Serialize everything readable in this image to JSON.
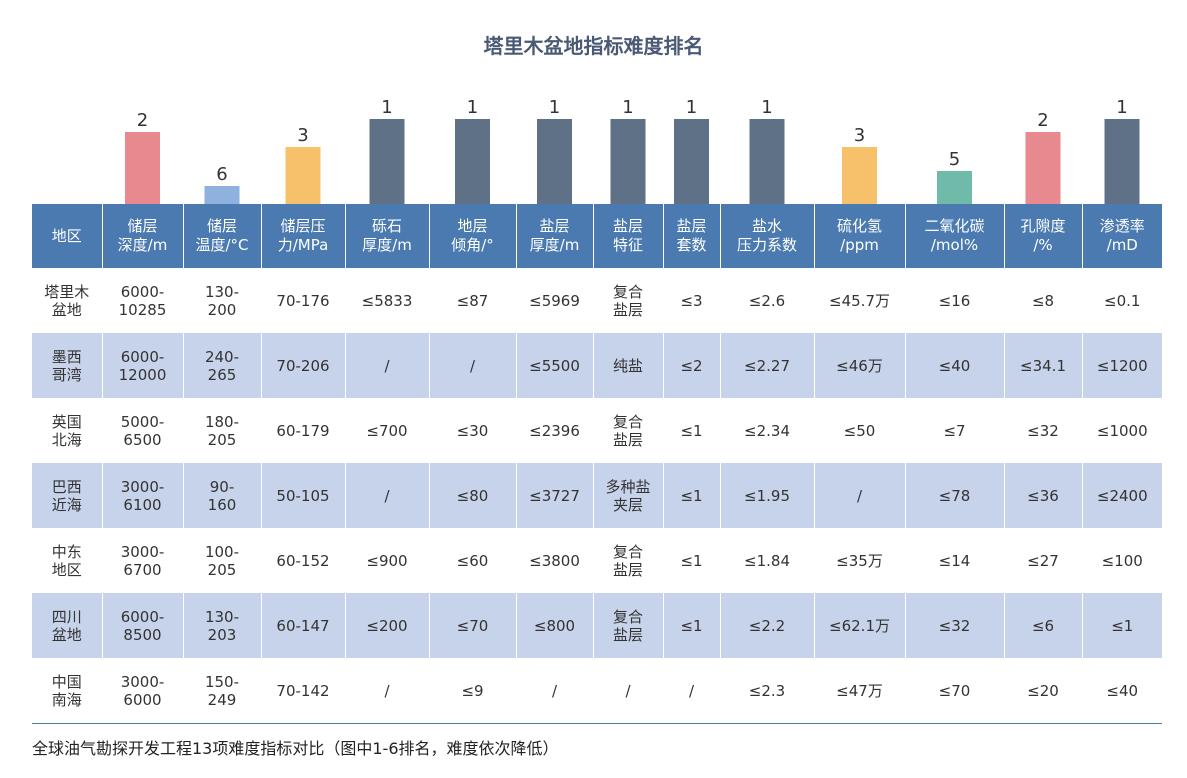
{
  "title": "塔里木盆地指标难度排名",
  "caption": "全球油气勘探开发工程13项难度指标对比（图中1-6排名，难度依次降低）",
  "colors": {
    "rank_1": "#5f7187",
    "rank_2": "#e8898f",
    "rank_3": "#f6c16a",
    "rank_5": "#6fbaa8",
    "rank_6": "#8fb1de",
    "header_bg": "#4a7ab0",
    "stripe_bg": "#c7d3ea"
  },
  "chart_data": {
    "type": "bar",
    "title": "塔里木盆地指标难度排名",
    "categories": [
      "储层深度/m",
      "储层温度/°C",
      "储层压力/MPa",
      "砾石厚度/m",
      "地层倾角/°",
      "盐层厚度/m",
      "盐层特征",
      "盐层套数",
      "盐水压力系数",
      "硫化氢/ppm",
      "二氧化碳/mol%",
      "孔隙度/%",
      "渗透率/mD"
    ],
    "values": [
      2,
      6,
      3,
      1,
      1,
      1,
      1,
      1,
      1,
      3,
      5,
      2,
      1
    ],
    "note": "rank 1-6, lower rank = higher difficulty; bar height decreases with rank"
  },
  "table": {
    "headers": [
      "地区",
      "储层\n深度/m",
      "储层\n温度/°C",
      "储层压\n力/MPa",
      "砾石\n厚度/m",
      "地层\n倾角/°",
      "盐层\n厚度/m",
      "盐层\n特征",
      "盐层\n套数",
      "盐水\n压力系数",
      "硫化氢\n/ppm",
      "二氧化碳\n/mol%",
      "孔隙度\n/%",
      "渗透率\n/mD"
    ],
    "rows": [
      [
        "塔里木\n盆地",
        "6000-\n10285",
        "130-\n200",
        "70-176",
        "≤5833",
        "≤87",
        "≤5969",
        "复合\n盐层",
        "≤3",
        "≤2.6",
        "≤45.7万",
        "≤16",
        "≤8",
        "≤0.1"
      ],
      [
        "墨西\n哥湾",
        "6000-\n12000",
        "240-\n265",
        "70-206",
        "/",
        "/",
        "≤5500",
        "纯盐",
        "≤2",
        "≤2.27",
        "≤46万",
        "≤40",
        "≤34.1",
        "≤1200"
      ],
      [
        "英国\n北海",
        "5000-\n6500",
        "180-\n205",
        "60-179",
        "≤700",
        "≤30",
        "≤2396",
        "复合\n盐层",
        "≤1",
        "≤2.34",
        "≤50",
        "≤7",
        "≤32",
        "≤1000"
      ],
      [
        "巴西\n近海",
        "3000-\n6100",
        "90-\n160",
        "50-105",
        "/",
        "≤80",
        "≤3727",
        "多种盐\n夹层",
        "≤1",
        "≤1.95",
        "/",
        "≤78",
        "≤36",
        "≤2400"
      ],
      [
        "中东\n地区",
        "3000-\n6700",
        "100-\n205",
        "60-152",
        "≤900",
        "≤60",
        "≤3800",
        "复合\n盐层",
        "≤1",
        "≤1.84",
        "≤35万",
        "≤14",
        "≤27",
        "≤100"
      ],
      [
        "四川\n盆地",
        "6000-\n8500",
        "130-\n203",
        "60-147",
        "≤200",
        "≤70",
        "≤800",
        "复合\n盐层",
        "≤1",
        "≤2.2",
        "≤62.1万",
        "≤32",
        "≤6",
        "≤1"
      ],
      [
        "中国\n南海",
        "3000-\n6000",
        "150-\n249",
        "70-142",
        "/",
        "≤9",
        "/",
        "/",
        "/",
        "≤2.3",
        "≤47万",
        "≤70",
        "≤20",
        "≤40"
      ]
    ]
  }
}
